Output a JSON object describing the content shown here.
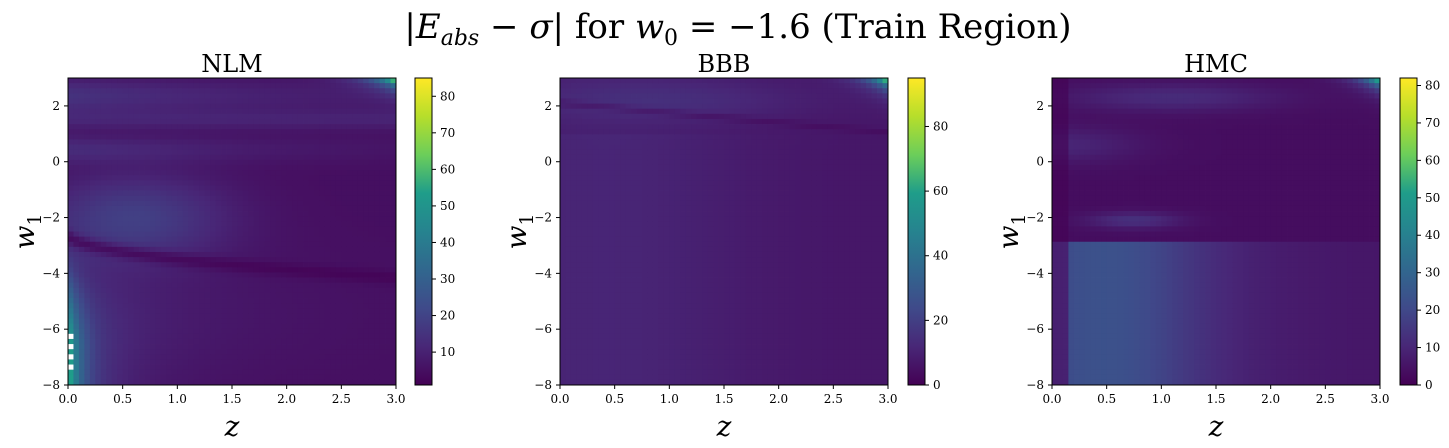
{
  "figure": {
    "title": "|E_abs − σ| for w_0 = −1.6 (Train Region)",
    "title_parts": {
      "bar_open": "|",
      "e_var": "E",
      "e_sub": "abs",
      "minus": " − ",
      "sigma": "σ",
      "bar_close": "|",
      "for": " for ",
      "w_var": "w",
      "w_sub": "0",
      "equals_value": " = −1.6",
      "region": " (Train Region)"
    }
  },
  "colormap": {
    "name": "viridis",
    "stops": [
      "#440154",
      "#482777",
      "#3f4a8a",
      "#31678e",
      "#26838f",
      "#1f9d8a",
      "#6cce5a",
      "#b6de2b",
      "#fee825"
    ]
  },
  "chart_data": [
    {
      "type": "heatmap",
      "title": "NLM",
      "xlabel": "z",
      "ylabel": "w_1",
      "xlim": [
        0.0,
        3.0
      ],
      "ylim": [
        -8,
        3
      ],
      "xticks": [
        "0.0",
        "0.5",
        "1.0",
        "1.5",
        "2.0",
        "2.5",
        "3.0"
      ],
      "yticks": [
        "2",
        "0",
        "−2",
        "−4",
        "−6",
        "−8"
      ],
      "colorbar": {
        "min": 1,
        "max": 85,
        "ticks": [
          "10",
          "20",
          "30",
          "40",
          "50",
          "60",
          "70",
          "80"
        ]
      },
      "missing_cells_near": {
        "z": 0.03,
        "w1_range": [
          -7.6,
          -6.1
        ]
      }
    },
    {
      "type": "heatmap",
      "title": "BBB",
      "xlabel": "z",
      "ylabel": "w_1",
      "xlim": [
        0.0,
        3.0
      ],
      "ylim": [
        -8,
        3
      ],
      "xticks": [
        "0.0",
        "0.5",
        "1.0",
        "1.5",
        "2.0",
        "2.5",
        "3.0"
      ],
      "yticks": [
        "2",
        "0",
        "−2",
        "−4",
        "−6",
        "−8"
      ],
      "colorbar": {
        "min": 0,
        "max": 95,
        "ticks": [
          "0",
          "20",
          "40",
          "60",
          "80"
        ]
      }
    },
    {
      "type": "heatmap",
      "title": "HMC",
      "xlabel": "z",
      "ylabel": "w_1",
      "xlim": [
        0.0,
        3.0
      ],
      "ylim": [
        -8,
        3
      ],
      "xticks": [
        "0.0",
        "0.5",
        "1.0",
        "1.5",
        "2.0",
        "2.5",
        "3.0"
      ],
      "yticks": [
        "2",
        "0",
        "−2",
        "−4",
        "−6",
        "−8"
      ],
      "colorbar": {
        "min": 0,
        "max": 82,
        "ticks": [
          "0",
          "10",
          "20",
          "30",
          "40",
          "50",
          "60",
          "70",
          "80"
        ]
      }
    }
  ]
}
